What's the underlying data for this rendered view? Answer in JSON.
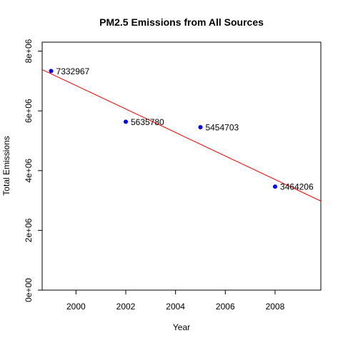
{
  "chart_data": {
    "type": "scatter",
    "title": "PM2.5 Emissions from All Sources",
    "xlabel": "Year",
    "ylabel": "Total Emissions",
    "x": [
      1999,
      2002,
      2005,
      2008
    ],
    "y": [
      7332967,
      5635780,
      5454703,
      3464206
    ],
    "point_labels": [
      "7332967",
      "5635780",
      "5454703",
      "3464206"
    ],
    "xlim": [
      1998.64,
      2009.84
    ],
    "ylim": [
      0,
      8300000
    ],
    "xticks": [
      2000,
      2002,
      2004,
      2006,
      2008
    ],
    "xtick_labels": [
      "2000",
      "2002",
      "2004",
      "2006",
      "2008"
    ],
    "yticks": [
      0,
      2000000,
      4000000,
      6000000,
      8000000
    ],
    "ytick_labels": [
      "0e+00",
      "2e+06",
      "4e+06",
      "6e+06",
      "8e+06"
    ],
    "trendline": {
      "type": "linear",
      "color": "#ff0000"
    },
    "point_color": "#0000ff",
    "grid": false,
    "legend": "none"
  }
}
